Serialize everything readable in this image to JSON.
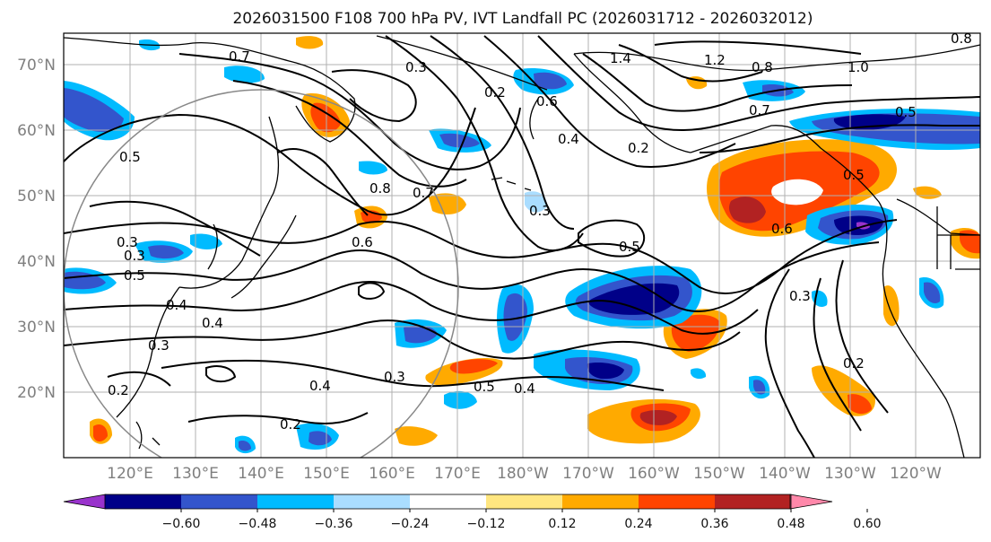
{
  "title": "2026031500 F108 700 hPa PV, IVT Landfall PC (2026031712 - 2026032012)",
  "lat_labels": [
    "70°N",
    "60°N",
    "50°N",
    "40°N",
    "30°N",
    "20°N"
  ],
  "lon_labels": [
    "120°E",
    "130°E",
    "140°E",
    "150°E",
    "160°E",
    "170°E",
    "180°W",
    "170°W",
    "160°W",
    "150°W",
    "140°W",
    "130°W",
    "120°W"
  ],
  "colorbar": {
    "colors": [
      "#9933cc",
      "#000088",
      "#3355cc",
      "#00bbff",
      "#aaddff",
      "#ffffff",
      "#ffe680",
      "#ffaa00",
      "#ff4400",
      "#b22222",
      "#ff88aa"
    ],
    "tick_labels": [
      "−0.60",
      "−0.48",
      "−0.36",
      "−0.24",
      "−0.12",
      "0.12",
      "0.24",
      "0.36",
      "0.48",
      "0.60"
    ]
  },
  "contour_labels": [
    "0.7",
    "0.3",
    "0.2",
    "0.6",
    "0.4",
    "1.4",
    "1.2",
    "0.8",
    "1.0",
    "0.5",
    "0.7",
    "0.5",
    "0.8",
    "0.7",
    "0.6",
    "0.3",
    "0.2",
    "0.6",
    "0.3",
    "0.5",
    "0.4",
    "0.3",
    "0.4",
    "0.3",
    "0.2",
    "0.2",
    "0.4",
    "0.3",
    "0.5",
    "0.4",
    "0.5",
    "0.3",
    "0.2",
    "0.8",
    "0.5"
  ]
}
